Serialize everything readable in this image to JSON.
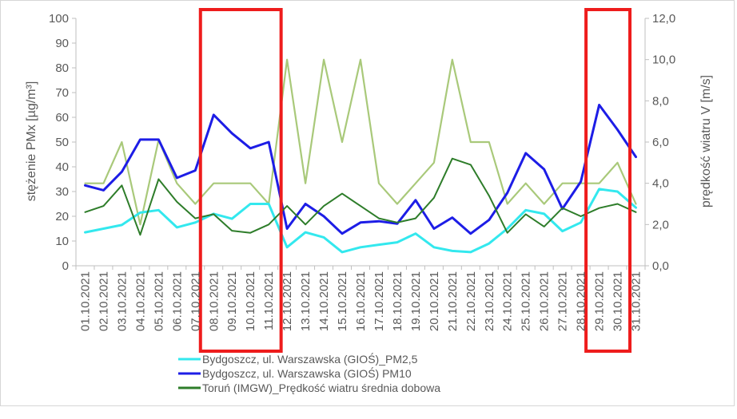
{
  "chart_data": {
    "type": "line",
    "title": "",
    "ylabel": "stężenie PMx [µg/m³]",
    "y2label": "prędkość wiatru V [m/s]",
    "ylim": [
      0,
      100
    ],
    "y2lim": [
      0,
      12
    ],
    "yticks": [
      "0",
      "10",
      "20",
      "30",
      "40",
      "50",
      "60",
      "70",
      "80",
      "90",
      "100"
    ],
    "y2ticks": [
      "0,0",
      "2,0",
      "4,0",
      "6,0",
      "8,0",
      "10,0",
      "12,0"
    ],
    "grid": false,
    "legend_position": "bottom",
    "categories": [
      "01.10.2021",
      "02.10.2021",
      "03.10.2021",
      "04.10.2021",
      "05.10.2021",
      "06.10.2021",
      "07.10.2021",
      "08.10.2021",
      "09.10.2021",
      "10.10.2021",
      "11.10.2021",
      "12.10.2021",
      "13.10.2021",
      "14.10.2021",
      "15.10.2021",
      "16.10.2021",
      "17.10.2021",
      "18.10.2021",
      "19.10.2021",
      "20.10.2021",
      "21.10.2021",
      "22.10.2021",
      "23.10.2021",
      "24.10.2021",
      "25.10.2021",
      "26.10.2021",
      "27.10.2021",
      "28.10.2021",
      "29.10.2021",
      "30.10.2021",
      "31.10.2021"
    ],
    "series": [
      {
        "name": "",
        "axis": "right",
        "color": "#a9c97a",
        "width": 2.2,
        "legend": false,
        "values": [
          4.0,
          4.0,
          6.0,
          2.0,
          6.1,
          4.0,
          3.0,
          4.0,
          4.0,
          4.0,
          3.0,
          10.0,
          4.0,
          10.0,
          6.0,
          10.0,
          4.0,
          3.0,
          4.0,
          5.0,
          10.0,
          6.0,
          6.0,
          3.0,
          4.0,
          3.0,
          4.0,
          4.0,
          4.0,
          5.0,
          3.0
        ]
      },
      {
        "name": "Bydgoszcz, ul. Warszawska (GIOŚ)_PM2,5",
        "axis": "left",
        "color": "#33e8ee",
        "width": 3,
        "legend": true,
        "values": [
          13.5,
          15,
          16.5,
          21.5,
          22.5,
          15.5,
          17.5,
          21,
          19,
          25,
          25,
          7.5,
          13.5,
          11.5,
          5.5,
          7.5,
          8.5,
          9.5,
          13,
          7.5,
          6,
          5.5,
          9,
          15,
          22.5,
          21,
          14,
          17.5,
          31,
          30,
          23.5
        ]
      },
      {
        "name": "Bydgoszcz, ul. Warszawska (GIOŚ) PM10",
        "axis": "left",
        "color": "#1d1de6",
        "width": 3,
        "legend": true,
        "values": [
          32.5,
          30.5,
          38,
          51,
          51,
          35.5,
          38.5,
          61,
          53.5,
          47.5,
          50,
          15,
          25,
          20,
          13,
          17.5,
          18,
          17,
          26.5,
          15,
          19.5,
          13,
          18.5,
          29.5,
          45.5,
          39,
          23,
          34,
          65,
          55,
          44
        ]
      },
      {
        "name": "Toruń (IMGW)_Prędkość wiatru średnia dobowa",
        "axis": "right",
        "color": "#2e7d2a",
        "width": 2,
        "legend": true,
        "values": [
          2.6,
          2.9,
          3.9,
          1.5,
          4.2,
          3.1,
          2.3,
          2.5,
          1.7,
          1.6,
          2.0,
          2.9,
          2.0,
          2.9,
          3.5,
          2.9,
          2.3,
          2.1,
          2.3,
          3.3,
          5.2,
          4.9,
          3.4,
          1.6,
          2.5,
          1.9,
          2.8,
          2.4,
          2.8,
          3.0,
          2.6
        ]
      }
    ],
    "highlights": [
      {
        "from": "08.10.2021",
        "to": "11.10.2021",
        "color": "#ee1c1c"
      },
      {
        "from": "29.10.2021",
        "to": "30.10.2021",
        "color": "#ee1c1c"
      }
    ]
  }
}
